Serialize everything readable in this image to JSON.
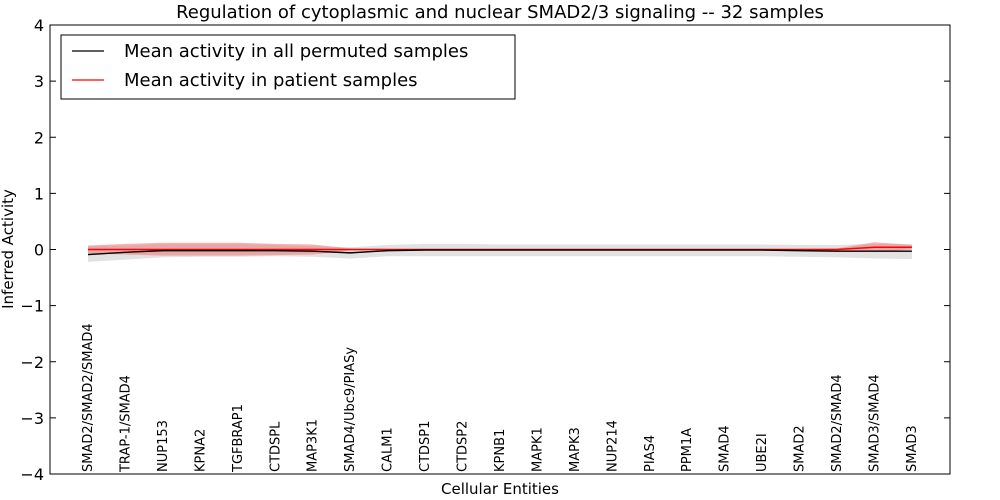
{
  "chart_data": {
    "type": "line",
    "title": "Regulation of cytoplasmic and nuclear SMAD2/3 signaling -- 32 samples",
    "xlabel": "Cellular Entities",
    "ylabel": "Inferred Activity",
    "ylim": [
      -4,
      4
    ],
    "yticks": [
      4,
      3,
      2,
      1,
      0,
      -1,
      -2,
      -3,
      -4
    ],
    "ytick_labels": [
      "4",
      "3",
      "2",
      "1",
      "0",
      "−1",
      "−2",
      "−3",
      "−4"
    ],
    "grid": false,
    "legend_position": "top-left",
    "categories": [
      "SMAD2/SMAD2/SMAD4",
      "TRAP-1/SMAD4",
      "NUP153",
      "KPNA2",
      "TGFBRAP1",
      "CTDSPL",
      "MAP3K1",
      "SMAD4/Ubc9/PIASy",
      "CALM1",
      "CTDSP1",
      "CTDSP2",
      "KPNB1",
      "MAPK1",
      "MAPK3",
      "NUP214",
      "PIAS4",
      "PPM1A",
      "SMAD4",
      "UBE2I",
      "SMAD2",
      "SMAD2/SMAD4",
      "SMAD3/SMAD4",
      "SMAD3"
    ],
    "series": [
      {
        "name": "Mean activity in all permuted samples",
        "color": "#000000",
        "band_color": "#bfbfbf",
        "values": [
          -0.09,
          -0.05,
          -0.02,
          -0.02,
          -0.02,
          -0.02,
          -0.03,
          -0.06,
          -0.02,
          -0.01,
          -0.01,
          -0.01,
          -0.01,
          -0.01,
          -0.01,
          -0.01,
          -0.01,
          -0.01,
          -0.01,
          -0.02,
          -0.03,
          -0.03,
          -0.03
        ],
        "band_upper": [
          0.07,
          0.07,
          0.1,
          0.1,
          0.1,
          0.08,
          0.06,
          0.04,
          0.08,
          0.1,
          0.1,
          0.09,
          0.09,
          0.09,
          0.09,
          0.09,
          0.09,
          0.09,
          0.09,
          0.08,
          0.08,
          0.1,
          0.1
        ],
        "band_lower": [
          -0.22,
          -0.18,
          -0.14,
          -0.13,
          -0.13,
          -0.12,
          -0.13,
          -0.16,
          -0.12,
          -0.12,
          -0.12,
          -0.12,
          -0.12,
          -0.12,
          -0.12,
          -0.12,
          -0.12,
          -0.12,
          -0.12,
          -0.13,
          -0.14,
          -0.16,
          -0.17
        ]
      },
      {
        "name": "Mean activity in patient samples",
        "color": "#ff0000",
        "band_color": "#f08080",
        "values": [
          0.0,
          0.0,
          0.0,
          0.0,
          0.0,
          0.0,
          0.0,
          0.0,
          0.0,
          0.0,
          0.0,
          0.0,
          0.0,
          0.0,
          0.0,
          0.0,
          0.0,
          0.0,
          0.0,
          0.0,
          0.0,
          0.04,
          0.04
        ],
        "band_upper": [
          0.07,
          0.1,
          0.12,
          0.12,
          0.12,
          0.1,
          0.09,
          0.02,
          0.01,
          0.01,
          0.01,
          0.01,
          0.01,
          0.01,
          0.01,
          0.01,
          0.01,
          0.01,
          0.01,
          0.01,
          0.02,
          0.13,
          0.08
        ],
        "band_lower": [
          -0.07,
          -0.09,
          -0.11,
          -0.11,
          -0.11,
          -0.1,
          -0.09,
          -0.02,
          -0.01,
          -0.01,
          -0.01,
          -0.01,
          -0.01,
          -0.01,
          -0.01,
          -0.01,
          -0.01,
          -0.01,
          -0.01,
          -0.01,
          -0.02,
          -0.04,
          0.0
        ]
      }
    ]
  }
}
